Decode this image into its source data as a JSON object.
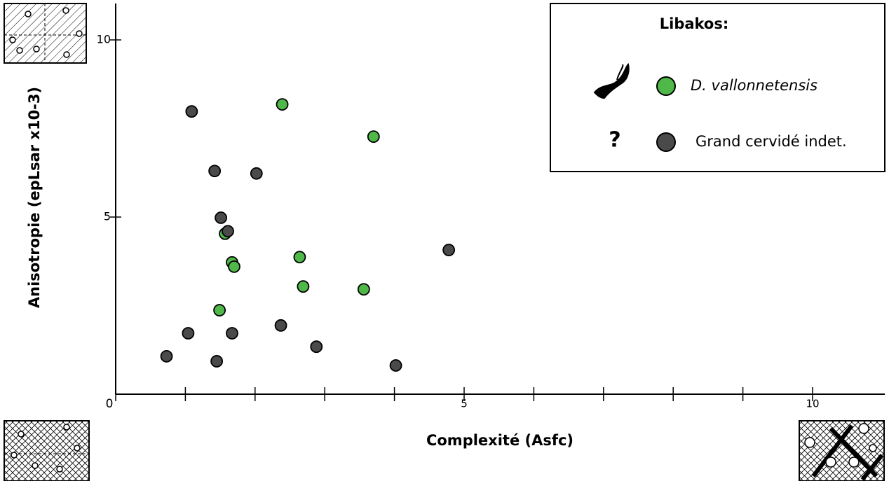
{
  "chart_data": {
    "type": "scatter",
    "x_label": "Complexité (Asfc)",
    "y_label": "Anisotropie (epLsar x10-3)",
    "legend_title": "Libakos:",
    "xlim": [
      0,
      11
    ],
    "ylim": [
      0,
      11
    ],
    "xticks": [
      0,
      5,
      10
    ],
    "yticks": [
      5,
      10
    ],
    "xminor_ticks": [
      1,
      2,
      3,
      4,
      6,
      7,
      8,
      9
    ],
    "series": [
      {
        "name": "D. vallonnetensis",
        "color": "#4fb848",
        "x": [
          2.39,
          3.7,
          1.57,
          1.67,
          1.7,
          2.64,
          2.69,
          3.56,
          1.49
        ],
        "values": [
          8.18,
          7.27,
          4.53,
          3.72,
          3.6,
          3.87,
          3.04,
          2.96,
          2.37
        ]
      },
      {
        "name": "Grand cervidé indet.",
        "color": "#4a4a4a",
        "icon_label": "?",
        "x": [
          1.09,
          1.42,
          2.02,
          1.51,
          1.61,
          4.78,
          1.04,
          1.67,
          2.37,
          2.88,
          0.73,
          1.45,
          4.02
        ],
        "values": [
          7.98,
          6.3,
          6.23,
          4.98,
          4.6,
          4.07,
          1.72,
          1.72,
          1.94,
          1.34,
          1.07,
          0.93,
          0.81
        ]
      }
    ]
  }
}
